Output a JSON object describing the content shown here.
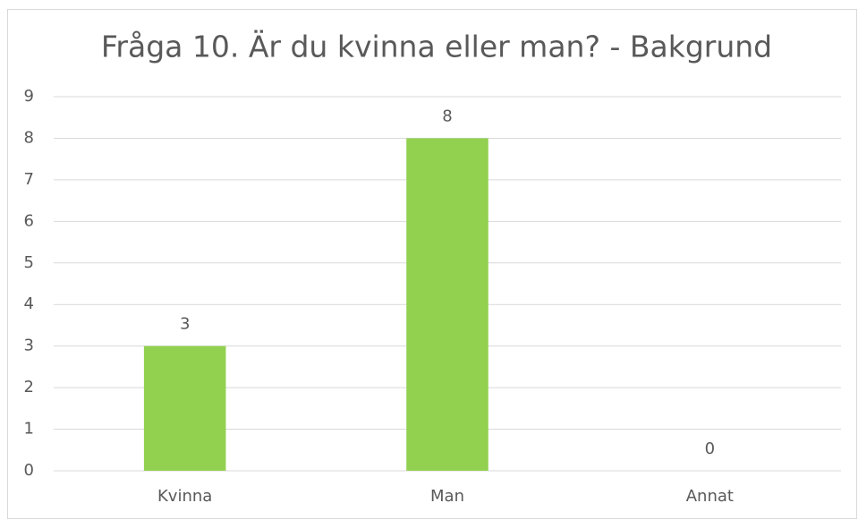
{
  "chart_data": {
    "type": "bar",
    "title": "Fråga 10. Är du kvinna eller man? - Bakgrund",
    "categories": [
      "Kvinna",
      "Man",
      "Annat"
    ],
    "values": [
      3,
      8,
      0
    ],
    "color": "#92d050",
    "ylim": [
      0,
      9
    ],
    "yticks": [
      0,
      1,
      2,
      3,
      4,
      5,
      6,
      7,
      8,
      9
    ],
    "grid": true,
    "data_labels": true
  }
}
